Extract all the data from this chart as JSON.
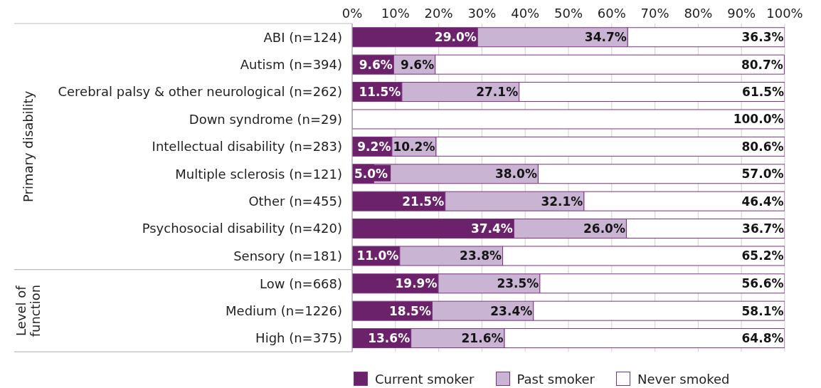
{
  "chart_data": [
    {
      "type": "bar",
      "orientation": "horizontal",
      "stacked": true,
      "ylabel": "Primary disability",
      "categories": [
        "ABI (n=124)",
        "Autism (n=394)",
        "Cerebral palsy & other neurological (n=262)",
        "Down syndrome (n=29)",
        "Intellectual disability (n=283)",
        "Multiple sclerosis (n=121)",
        "Other (n=455)",
        "Psychosocial disability (n=420)",
        "Sensory (n=181)"
      ],
      "series": [
        {
          "color": "#6b226b",
          "values": [
            29.0,
            9.6,
            11.5,
            0,
            9.2,
            5.0,
            21.5,
            37.4,
            11.0
          ],
          "value_labels": [
            "29.0%",
            "9.6%",
            "11.5%",
            null,
            "9.2%",
            "5.0%",
            "21.5%",
            "37.4%",
            "11.0%"
          ]
        },
        {
          "color": "#cab4d4",
          "values": [
            34.7,
            9.6,
            27.1,
            0,
            10.2,
            38.0,
            32.1,
            26.0,
            23.8
          ],
          "value_labels": [
            "34.7%",
            "9.6%",
            "27.1%",
            null,
            "10.2%",
            "38.0%",
            "32.1%",
            "26.0%",
            "23.8%"
          ]
        },
        {
          "color": "#ffffff",
          "values": [
            36.3,
            80.7,
            61.5,
            100.0,
            80.6,
            57.0,
            46.4,
            36.7,
            65.2
          ],
          "value_labels": [
            "36.3%",
            "80.7%",
            "61.5%",
            "100.0%",
            "80.6%",
            "57.0%",
            "46.4%",
            "36.7%",
            "65.2%"
          ]
        }
      ],
      "xlim": [
        0,
        100
      ],
      "xticks": [
        {
          "value": 0,
          "label": "0%"
        },
        {
          "value": 10,
          "label": "10%"
        },
        {
          "value": 20,
          "label": "20%"
        },
        {
          "value": 30,
          "label": "30%"
        },
        {
          "value": 40,
          "label": "40%"
        },
        {
          "value": 50,
          "label": "50%"
        },
        {
          "value": 60,
          "label": "60%"
        },
        {
          "value": 70,
          "label": "70%"
        },
        {
          "value": 80,
          "label": "80%"
        },
        {
          "value": 90,
          "label": "90%"
        },
        {
          "value": 100,
          "label": "100%"
        }
      ],
      "grid": "x"
    },
    {
      "type": "bar",
      "orientation": "horizontal",
      "stacked": true,
      "ylabel": "Level of function",
      "categories": [
        "Low (n=668)",
        "Medium (n=1226)",
        "High (n=375)"
      ],
      "series": [
        {
          "name": "Current smoker",
          "color": "#6b226b",
          "values": [
            19.9,
            18.5,
            13.6
          ],
          "value_labels": [
            "19.9%",
            "18.5%",
            "13.6%"
          ]
        },
        {
          "name": "Past smoker",
          "color": "#cab4d4",
          "values": [
            23.5,
            23.4,
            21.6
          ],
          "value_labels": [
            "23.5%",
            "23.4%",
            "21.6%"
          ]
        },
        {
          "name": "Never smoked",
          "color": "#ffffff",
          "values": [
            56.6,
            58.1,
            64.8
          ],
          "value_labels": [
            "56.6%",
            "58.1%",
            "64.8%"
          ]
        }
      ],
      "xlim": [
        0,
        100
      ],
      "xticks": [
        {
          "value": 0,
          "label": null
        },
        {
          "value": 10,
          "label": null
        },
        {
          "value": 20,
          "label": null
        },
        {
          "value": 30,
          "label": null
        },
        {
          "value": 40,
          "label": null
        },
        {
          "value": 50,
          "label": null
        },
        {
          "value": 60,
          "label": null
        },
        {
          "value": 70,
          "label": null
        },
        {
          "value": 80,
          "label": null
        },
        {
          "value": 90,
          "label": null
        },
        {
          "value": 100,
          "label": null
        }
      ],
      "tick_labels": "y",
      "grid": "x",
      "legend": "bottom"
    }
  ]
}
